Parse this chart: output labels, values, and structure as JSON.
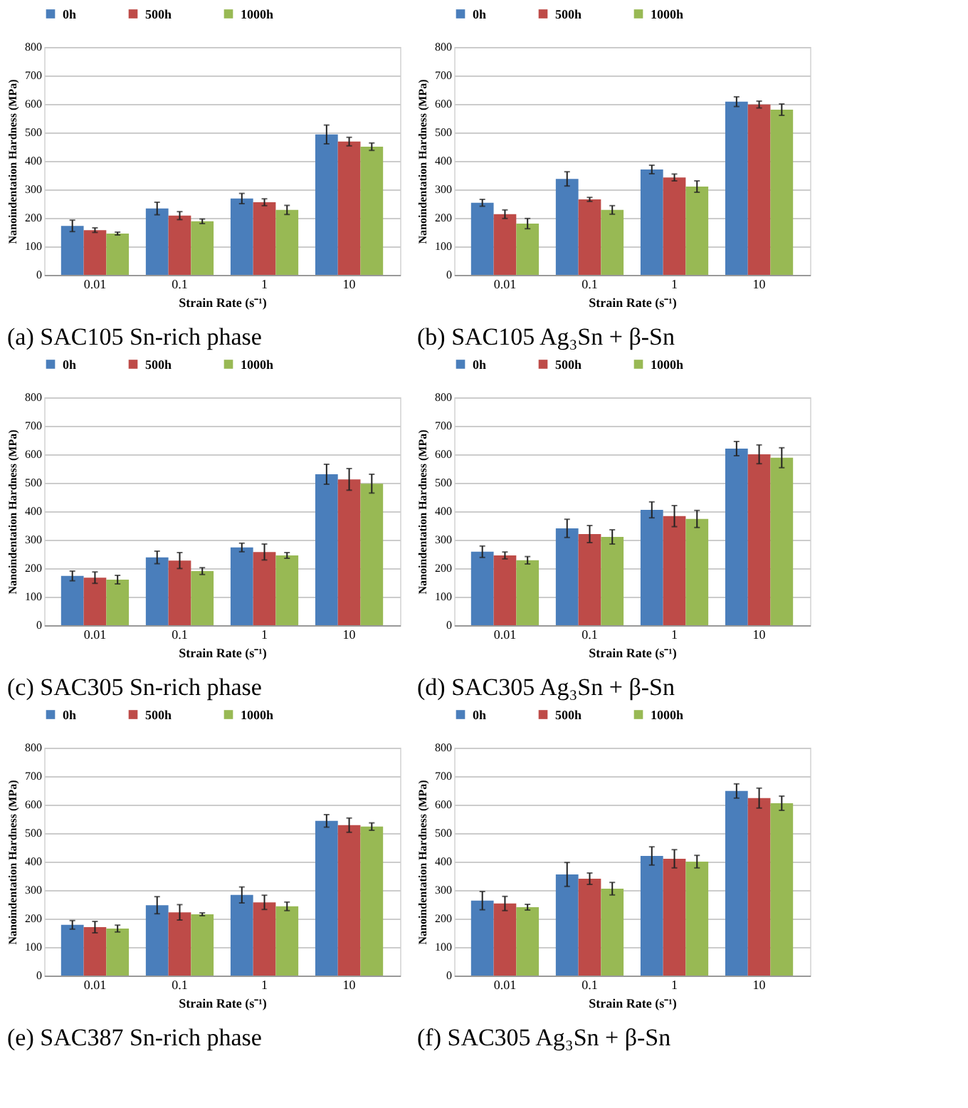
{
  "chart_data": [
    {
      "type": "bar",
      "title": "(a)   SAC105 Sn-rich phase",
      "xlabel": "Strain Rate (s⁻¹)",
      "ylabel": "Nanoindentation Hardness (MPa)",
      "categories": [
        "0.01",
        "0.1",
        "1",
        "10"
      ],
      "ylim": [
        0,
        800
      ],
      "yticks": [
        0,
        100,
        200,
        300,
        400,
        500,
        600,
        700,
        800
      ],
      "grid": "y",
      "legend": "top",
      "series": [
        {
          "name": "0h",
          "color": "#4a7ebb",
          "values": [
            172,
            233,
            268,
            493
          ],
          "errors": [
            20,
            22,
            18,
            33
          ]
        },
        {
          "name": "500h",
          "color": "#be4b48",
          "values": [
            157,
            208,
            255,
            468
          ],
          "errors": [
            8,
            14,
            12,
            15
          ]
        },
        {
          "name": "1000h",
          "color": "#98b954",
          "values": [
            145,
            188,
            228,
            450
          ],
          "errors": [
            5,
            8,
            16,
            13
          ]
        }
      ]
    },
    {
      "type": "bar",
      "title": "(b)   SAC105 Ag₃Sn + β-Sn",
      "xlabel": "Strain Rate (s⁻¹)",
      "ylabel": "Nanoindentation Hardness (MPa)",
      "categories": [
        "0.01",
        "0.1",
        "1",
        "10"
      ],
      "ylim": [
        0,
        800
      ],
      "yticks": [
        0,
        100,
        200,
        300,
        400,
        500,
        600,
        700,
        800
      ],
      "grid": "y",
      "legend": "top",
      "series": [
        {
          "name": "0h",
          "color": "#4a7ebb",
          "values": [
            253,
            337,
            370,
            608
          ],
          "errors": [
            12,
            25,
            15,
            17
          ]
        },
        {
          "name": "500h",
          "color": "#be4b48",
          "values": [
            213,
            265,
            342,
            598
          ],
          "errors": [
            15,
            7,
            12,
            12
          ]
        },
        {
          "name": "1000h",
          "color": "#98b954",
          "values": [
            180,
            228,
            310,
            580
          ],
          "errors": [
            18,
            15,
            20,
            20
          ]
        }
      ]
    },
    {
      "type": "bar",
      "title": "(c)   SAC305 Sn-rich phase",
      "xlabel": "Strain Rate (s⁻¹)",
      "ylabel": "Nanoindentation Hardness (MPa)",
      "categories": [
        "0.01",
        "0.1",
        "1",
        "10"
      ],
      "ylim": [
        0,
        800
      ],
      "yticks": [
        0,
        100,
        200,
        300,
        400,
        500,
        600,
        700,
        800
      ],
      "grid": "y",
      "legend": "top",
      "series": [
        {
          "name": "0h",
          "color": "#4a7ebb",
          "values": [
            173,
            238,
            273,
            530
          ],
          "errors": [
            17,
            22,
            15,
            35
          ]
        },
        {
          "name": "500h",
          "color": "#be4b48",
          "values": [
            167,
            227,
            257,
            512
          ],
          "errors": [
            20,
            28,
            28,
            38
          ]
        },
        {
          "name": "1000h",
          "color": "#98b954",
          "values": [
            160,
            190,
            245,
            497
          ],
          "errors": [
            15,
            12,
            10,
            33
          ]
        }
      ]
    },
    {
      "type": "bar",
      "title": "(d)   SAC305 Ag₃Sn + β-Sn",
      "xlabel": "Strain Rate (s⁻¹)",
      "ylabel": "Nanoindentation Hardness (MPa)",
      "categories": [
        "0.01",
        "0.1",
        "1",
        "10"
      ],
      "ylim": [
        0,
        800
      ],
      "yticks": [
        0,
        100,
        200,
        300,
        400,
        500,
        600,
        700,
        800
      ],
      "grid": "y",
      "legend": "top",
      "series": [
        {
          "name": "0h",
          "color": "#4a7ebb",
          "values": [
            258,
            340,
            405,
            620
          ],
          "errors": [
            20,
            32,
            28,
            25
          ]
        },
        {
          "name": "500h",
          "color": "#be4b48",
          "values": [
            245,
            320,
            383,
            600
          ],
          "errors": [
            12,
            30,
            37,
            33
          ]
        },
        {
          "name": "1000h",
          "color": "#98b954",
          "values": [
            228,
            310,
            373,
            588
          ],
          "errors": [
            13,
            25,
            30,
            35
          ]
        }
      ]
    },
    {
      "type": "bar",
      "title": "(e)   SAC387 Sn-rich phase",
      "xlabel": "Strain Rate (s⁻¹)",
      "ylabel": "Nanoindentation Hardness (MPa)",
      "categories": [
        "0.01",
        "0.1",
        "1",
        "10"
      ],
      "ylim": [
        0,
        800
      ],
      "yticks": [
        0,
        100,
        200,
        300,
        400,
        500,
        600,
        700,
        800
      ],
      "grid": "y",
      "legend": "top",
      "series": [
        {
          "name": "0h",
          "color": "#4a7ebb",
          "values": [
            178,
            247,
            283,
            543
          ],
          "errors": [
            15,
            30,
            28,
            22
          ]
        },
        {
          "name": "500h",
          "color": "#be4b48",
          "values": [
            170,
            222,
            257,
            528
          ],
          "errors": [
            20,
            27,
            25,
            25
          ]
        },
        {
          "name": "1000h",
          "color": "#98b954",
          "values": [
            165,
            215,
            243,
            523
          ],
          "errors": [
            12,
            5,
            15,
            13
          ]
        }
      ]
    },
    {
      "type": "bar",
      "title": "(f)   SAC305 Ag₃Sn + β-Sn",
      "xlabel": "Strain Rate (s⁻¹)",
      "ylabel": "Nanoindentation Hardness (MPa)",
      "categories": [
        "0.01",
        "0.1",
        "1",
        "10"
      ],
      "ylim": [
        0,
        800
      ],
      "yticks": [
        0,
        100,
        200,
        300,
        400,
        500,
        600,
        700,
        800
      ],
      "grid": "y",
      "legend": "top",
      "series": [
        {
          "name": "0h",
          "color": "#4a7ebb",
          "values": [
            263,
            355,
            420,
            648
          ],
          "errors": [
            32,
            42,
            32,
            25
          ]
        },
        {
          "name": "500h",
          "color": "#be4b48",
          "values": [
            253,
            340,
            410,
            623
          ],
          "errors": [
            25,
            20,
            32,
            35
          ]
        },
        {
          "name": "1000h",
          "color": "#98b954",
          "values": [
            240,
            305,
            400,
            605
          ],
          "errors": [
            10,
            22,
            22,
            25
          ]
        }
      ]
    }
  ]
}
